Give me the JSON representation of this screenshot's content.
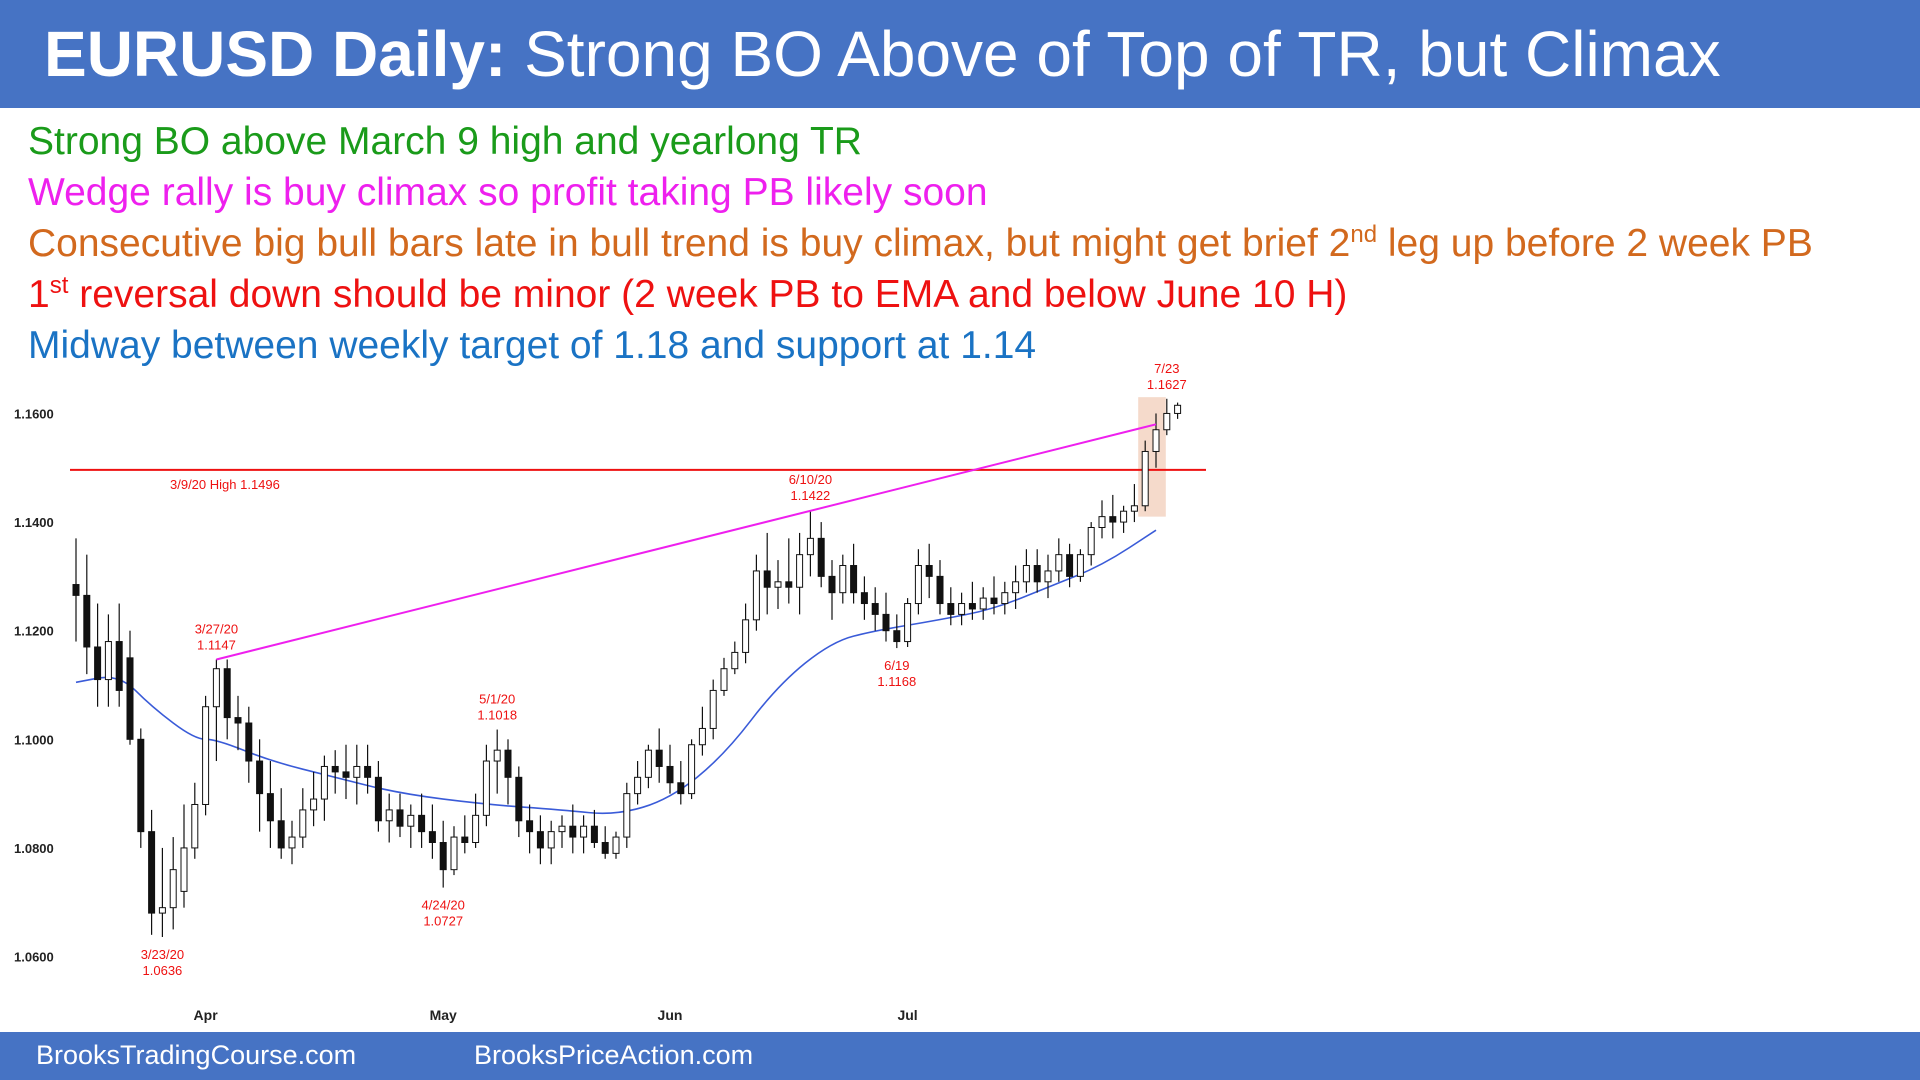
{
  "title": {
    "bold": "EURUSD Daily:",
    "rest": "Strong BO Above of Top of TR, but Climax"
  },
  "colors": {
    "header": "#4673c4",
    "green": "#1a9b1a",
    "magenta": "#ee20ee",
    "orange": "#d2691e",
    "red": "#ee1111",
    "blue": "#1a73c4"
  },
  "notes": [
    {
      "color": "#1a9b1a",
      "text": "Strong BO above March 9 high and yearlong TR"
    },
    {
      "color": "#ee20ee",
      "text": "Wedge rally is buy climax so profit taking PB likely soon"
    },
    {
      "color": "#d2691e",
      "text": "Consecutive big bull bars late in bull trend is buy climax, but might get brief 2",
      "sup": "nd",
      "tail": " leg up before 2 week PB"
    },
    {
      "color": "#ee1111",
      "text": "",
      "sup": "st",
      "pre": "1",
      "tail": " reversal down should be minor (2 week PB to EMA and below June 10 H)"
    },
    {
      "color": "#1a73c4",
      "text": "Midway between weekly target of 1.18 and support at 1.14"
    }
  ],
  "footer": {
    "left": "BrooksTradingCourse.com",
    "right": "BrooksPriceAction.com"
  },
  "chart_data": {
    "type": "candlestick",
    "ylim": [
      1.052,
      1.168
    ],
    "yticks": [
      1.06,
      1.08,
      1.1,
      1.12,
      1.14,
      1.16
    ],
    "ytick_labels": [
      "1.0600",
      "1.0800",
      "1.1000",
      "1.1200",
      "1.1400",
      "1.1600"
    ],
    "xtick_labels": [
      {
        "label": "Apr",
        "bar": 12
      },
      {
        "label": "May",
        "bar": 34
      },
      {
        "label": "Jun",
        "bar": 55
      },
      {
        "label": "Jul",
        "bar": 77
      }
    ],
    "candles": [
      [
        1.1285,
        1.137,
        1.118,
        1.1265
      ],
      [
        1.1265,
        1.134,
        1.112,
        1.117
      ],
      [
        1.117,
        1.125,
        1.106,
        1.111
      ],
      [
        1.111,
        1.123,
        1.106,
        1.118
      ],
      [
        1.118,
        1.125,
        1.106,
        1.109
      ],
      [
        1.115,
        1.12,
        1.099,
        1.1
      ],
      [
        1.1,
        1.102,
        1.08,
        1.083
      ],
      [
        1.083,
        1.087,
        1.064,
        1.068
      ],
      [
        1.068,
        1.08,
        1.0636,
        1.069
      ],
      [
        1.069,
        1.082,
        1.065,
        1.076
      ],
      [
        1.072,
        1.088,
        1.069,
        1.08
      ],
      [
        1.08,
        1.092,
        1.078,
        1.088
      ],
      [
        1.088,
        1.108,
        1.086,
        1.106
      ],
      [
        1.106,
        1.1147,
        1.096,
        1.113
      ],
      [
        1.113,
        1.1147,
        1.1,
        1.104
      ],
      [
        1.104,
        1.108,
        1.098,
        1.103
      ],
      [
        1.103,
        1.106,
        1.092,
        1.096
      ],
      [
        1.096,
        1.1,
        1.083,
        1.09
      ],
      [
        1.09,
        1.096,
        1.08,
        1.085
      ],
      [
        1.085,
        1.091,
        1.078,
        1.08
      ],
      [
        1.08,
        1.085,
        1.077,
        1.082
      ],
      [
        1.082,
        1.091,
        1.08,
        1.087
      ],
      [
        1.087,
        1.094,
        1.084,
        1.089
      ],
      [
        1.089,
        1.097,
        1.085,
        1.095
      ],
      [
        1.095,
        1.098,
        1.09,
        1.094
      ],
      [
        1.094,
        1.099,
        1.089,
        1.093
      ],
      [
        1.093,
        1.099,
        1.088,
        1.095
      ],
      [
        1.095,
        1.099,
        1.09,
        1.093
      ],
      [
        1.093,
        1.096,
        1.083,
        1.085
      ],
      [
        1.085,
        1.09,
        1.081,
        1.087
      ],
      [
        1.087,
        1.09,
        1.082,
        1.084
      ],
      [
        1.084,
        1.088,
        1.08,
        1.086
      ],
      [
        1.086,
        1.09,
        1.08,
        1.083
      ],
      [
        1.083,
        1.088,
        1.078,
        1.081
      ],
      [
        1.081,
        1.085,
        1.0727,
        1.076
      ],
      [
        1.076,
        1.084,
        1.075,
        1.082
      ],
      [
        1.082,
        1.086,
        1.079,
        1.081
      ],
      [
        1.081,
        1.09,
        1.08,
        1.086
      ],
      [
        1.086,
        1.099,
        1.084,
        1.096
      ],
      [
        1.096,
        1.1018,
        1.09,
        1.098
      ],
      [
        1.098,
        1.1,
        1.088,
        1.093
      ],
      [
        1.093,
        1.095,
        1.082,
        1.085
      ],
      [
        1.085,
        1.088,
        1.079,
        1.083
      ],
      [
        1.083,
        1.086,
        1.077,
        1.08
      ],
      [
        1.08,
        1.085,
        1.077,
        1.083
      ],
      [
        1.083,
        1.086,
        1.08,
        1.084
      ],
      [
        1.084,
        1.088,
        1.079,
        1.082
      ],
      [
        1.082,
        1.086,
        1.079,
        1.084
      ],
      [
        1.084,
        1.087,
        1.08,
        1.081
      ],
      [
        1.081,
        1.084,
        1.078,
        1.079
      ],
      [
        1.079,
        1.083,
        1.078,
        1.082
      ],
      [
        1.082,
        1.092,
        1.08,
        1.09
      ],
      [
        1.09,
        1.096,
        1.088,
        1.093
      ],
      [
        1.093,
        1.099,
        1.091,
        1.098
      ],
      [
        1.098,
        1.102,
        1.092,
        1.095
      ],
      [
        1.095,
        1.099,
        1.09,
        1.092
      ],
      [
        1.092,
        1.096,
        1.088,
        1.09
      ],
      [
        1.09,
        1.1,
        1.089,
        1.099
      ],
      [
        1.099,
        1.106,
        1.097,
        1.102
      ],
      [
        1.102,
        1.111,
        1.1,
        1.109
      ],
      [
        1.109,
        1.115,
        1.108,
        1.113
      ],
      [
        1.113,
        1.118,
        1.112,
        1.116
      ],
      [
        1.116,
        1.125,
        1.114,
        1.122
      ],
      [
        1.122,
        1.134,
        1.12,
        1.131
      ],
      [
        1.131,
        1.138,
        1.123,
        1.128
      ],
      [
        1.128,
        1.133,
        1.124,
        1.129
      ],
      [
        1.129,
        1.137,
        1.125,
        1.128
      ],
      [
        1.128,
        1.138,
        1.123,
        1.134
      ],
      [
        1.134,
        1.1422,
        1.13,
        1.137
      ],
      [
        1.137,
        1.14,
        1.128,
        1.13
      ],
      [
        1.13,
        1.133,
        1.122,
        1.127
      ],
      [
        1.127,
        1.134,
        1.125,
        1.132
      ],
      [
        1.132,
        1.136,
        1.125,
        1.127
      ],
      [
        1.127,
        1.13,
        1.122,
        1.125
      ],
      [
        1.125,
        1.128,
        1.12,
        1.123
      ],
      [
        1.123,
        1.127,
        1.118,
        1.12
      ],
      [
        1.12,
        1.123,
        1.1168,
        1.118
      ],
      [
        1.118,
        1.126,
        1.117,
        1.125
      ],
      [
        1.125,
        1.135,
        1.123,
        1.132
      ],
      [
        1.132,
        1.136,
        1.126,
        1.13
      ],
      [
        1.13,
        1.133,
        1.123,
        1.125
      ],
      [
        1.125,
        1.128,
        1.121,
        1.123
      ],
      [
        1.123,
        1.127,
        1.121,
        1.125
      ],
      [
        1.125,
        1.129,
        1.122,
        1.124
      ],
      [
        1.124,
        1.128,
        1.122,
        1.126
      ],
      [
        1.126,
        1.13,
        1.123,
        1.125
      ],
      [
        1.125,
        1.129,
        1.123,
        1.127
      ],
      [
        1.127,
        1.132,
        1.124,
        1.129
      ],
      [
        1.129,
        1.135,
        1.127,
        1.132
      ],
      [
        1.132,
        1.135,
        1.127,
        1.129
      ],
      [
        1.129,
        1.134,
        1.126,
        1.131
      ],
      [
        1.131,
        1.137,
        1.129,
        1.134
      ],
      [
        1.134,
        1.136,
        1.128,
        1.13
      ],
      [
        1.13,
        1.135,
        1.129,
        1.134
      ],
      [
        1.134,
        1.14,
        1.132,
        1.139
      ],
      [
        1.139,
        1.144,
        1.137,
        1.141
      ],
      [
        1.141,
        1.145,
        1.137,
        1.14
      ],
      [
        1.14,
        1.143,
        1.138,
        1.142
      ],
      [
        1.142,
        1.147,
        1.14,
        1.143
      ],
      [
        1.143,
        1.155,
        1.142,
        1.153
      ],
      [
        1.153,
        1.16,
        1.15,
        1.157
      ],
      [
        1.157,
        1.1627,
        1.156,
        1.16
      ],
      [
        1.16,
        1.162,
        1.159,
        1.1615
      ]
    ],
    "ema_start": [
      1.1105,
      1.111
    ],
    "ema_key": [
      [
        0,
        1.1105
      ],
      [
        4,
        1.112
      ],
      [
        7,
        1.106
      ],
      [
        11,
        1.1
      ],
      [
        13,
        1.1
      ],
      [
        18,
        1.096
      ],
      [
        24,
        1.093
      ],
      [
        30,
        1.09
      ],
      [
        38,
        1.088
      ],
      [
        45,
        1.087
      ],
      [
        50,
        1.086
      ],
      [
        55,
        1.089
      ],
      [
        60,
        1.097
      ],
      [
        65,
        1.11
      ],
      [
        70,
        1.118
      ],
      [
        74,
        1.12
      ],
      [
        80,
        1.122
      ],
      [
        85,
        1.124
      ],
      [
        90,
        1.128
      ],
      [
        95,
        1.132
      ],
      [
        100,
        1.1385
      ]
    ],
    "hline": {
      "value": 1.1496,
      "label": "3/9/20 High 1.1496"
    },
    "wedge_line": {
      "from": [
        13,
        1.1147
      ],
      "to": [
        100,
        1.158
      ]
    },
    "highlight": {
      "from_bar": 99,
      "to_bar": 101,
      "top": 1.163,
      "bottom": 1.141
    },
    "annotations": [
      {
        "bar": 13,
        "price": 1.1147,
        "pos": "above",
        "lines": [
          "3/27/20",
          "1.1147"
        ]
      },
      {
        "bar": 8,
        "price": 1.0636,
        "pos": "below",
        "lines": [
          "3/23/20",
          "1.0636"
        ]
      },
      {
        "bar": 34,
        "price": 1.0727,
        "pos": "below",
        "lines": [
          "4/24/20",
          "1.0727"
        ]
      },
      {
        "bar": 39,
        "price": 1.1018,
        "pos": "above",
        "lines": [
          "5/1/20",
          "1.1018"
        ]
      },
      {
        "bar": 68,
        "price": 1.1422,
        "pos": "above",
        "lines": [
          "6/10/20",
          "1.1422"
        ]
      },
      {
        "bar": 76,
        "price": 1.1168,
        "pos": "below",
        "lines": [
          "6/19",
          "1.1168"
        ]
      },
      {
        "bar": 101,
        "price": 1.1627,
        "pos": "above",
        "lines": [
          "7/23",
          "1.1627"
        ]
      }
    ]
  }
}
